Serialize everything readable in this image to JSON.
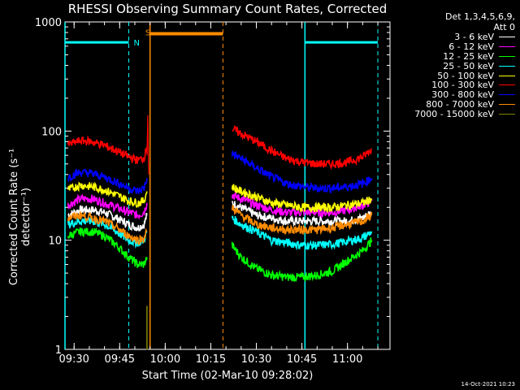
{
  "title": "RHESSI Observing Summary Count Rates, Corrected",
  "detector_header": [
    "Det 1,3,4,5,6,9,",
    "Att 0"
  ],
  "xlabel": "Start Time (02-Mar-10 09:28:02)",
  "ylabel": "Corrected Count Rate (s⁻¹ detector⁻¹)",
  "timestamp": "14-Oct-2021 10:23",
  "flags": {
    "n_label": "N",
    "s_label": "S"
  },
  "chart_data": {
    "type": "line",
    "title": "RHESSI Observing Summary Count Rates, Corrected",
    "xlabel": "Start Time (02-Mar-10 09:28:02)",
    "ylabel": "Corrected Count Rate (s⁻¹ detector⁻¹)",
    "y_scale": "log",
    "xlim": [
      "09:27",
      "11:14"
    ],
    "ylim": [
      1,
      1000
    ],
    "x_ticks": [
      "09:30",
      "09:45",
      "10:00",
      "10:15",
      "10:30",
      "10:45",
      "11:00"
    ],
    "y_ticks": [
      "1",
      "10",
      "100",
      "1000"
    ],
    "legend_position": "right",
    "series": [
      {
        "name": "3 - 6 keV",
        "color": "#ffffff",
        "x": [
          "09:28",
          "09:32",
          "09:36",
          "09:40",
          "09:44",
          "09:48",
          "09:51",
          "09:53",
          "09:54"
        ],
        "y": [
          17,
          19,
          19,
          18,
          16,
          14,
          13,
          14,
          17
        ],
        "x2": [
          "10:22",
          "10:25",
          "10:30",
          "10:35",
          "10:40",
          "10:45",
          "10:50",
          "10:55",
          "11:00",
          "11:05",
          "11:08"
        ],
        "y2": [
          22,
          20,
          17,
          16,
          15,
          15,
          15,
          15,
          15,
          16,
          18
        ]
      },
      {
        "name": "6 - 12 keV",
        "color": "#ff00ff",
        "x": [
          "09:28",
          "09:32",
          "09:36",
          "09:40",
          "09:44",
          "09:48",
          "09:51",
          "09:53",
          "09:54"
        ],
        "y": [
          21,
          24,
          24,
          22,
          20,
          18,
          17,
          18,
          22
        ],
        "x2": [
          "10:22",
          "10:25",
          "10:30",
          "10:35",
          "10:40",
          "10:45",
          "10:50",
          "10:55",
          "11:00",
          "11:05",
          "11:08"
        ],
        "y2": [
          26,
          24,
          21,
          19,
          18,
          18,
          18,
          18,
          19,
          21,
          23
        ]
      },
      {
        "name": "12 - 25 keV",
        "color": "#00ff00",
        "x": [
          "09:28",
          "09:32",
          "09:36",
          "09:40",
          "09:44",
          "09:48",
          "09:51",
          "09:53",
          "09:54"
        ],
        "y": [
          11,
          12,
          12,
          11,
          9,
          7,
          6,
          6,
          7
        ],
        "x2": [
          "10:22",
          "10:25",
          "10:30",
          "10:35",
          "10:40",
          "10:45",
          "10:50",
          "10:55",
          "11:00",
          "11:05",
          "11:08"
        ],
        "y2": [
          9,
          7,
          5.5,
          4.8,
          4.6,
          4.6,
          4.8,
          5.2,
          6.5,
          8,
          10
        ]
      },
      {
        "name": "25 - 50 keV",
        "color": "#00ffff",
        "x": [
          "09:28",
          "09:32",
          "09:36",
          "09:40",
          "09:44",
          "09:48",
          "09:51",
          "09:53",
          "09:54"
        ],
        "y": [
          14,
          15,
          15,
          14,
          12,
          10,
          9.5,
          10,
          12
        ],
        "x2": [
          "10:22",
          "10:25",
          "10:30",
          "10:35",
          "10:40",
          "10:45",
          "10:50",
          "10:55",
          "11:00",
          "11:05",
          "11:08"
        ],
        "y2": [
          16,
          14,
          12,
          10,
          9.5,
          9,
          9,
          9.2,
          9.8,
          10.5,
          12
        ]
      },
      {
        "name": "50 - 100 keV",
        "color": "#ffff00",
        "x": [
          "09:28",
          "09:32",
          "09:36",
          "09:40",
          "09:44",
          "09:48",
          "09:51",
          "09:53",
          "09:54"
        ],
        "y": [
          29,
          32,
          31,
          29,
          26,
          23,
          22,
          23,
          28
        ],
        "x2": [
          "10:22",
          "10:25",
          "10:30",
          "10:35",
          "10:40",
          "10:45",
          "10:50",
          "10:55",
          "11:00",
          "11:05",
          "11:08"
        ],
        "y2": [
          31,
          28,
          25,
          22,
          21,
          20,
          20,
          20,
          21,
          22,
          24
        ]
      },
      {
        "name": "100 - 300 keV",
        "color": "#ff0000",
        "x": [
          "09:28",
          "09:32",
          "09:36",
          "09:40",
          "09:44",
          "09:48",
          "09:51",
          "09:53",
          "09:54"
        ],
        "y": [
          75,
          82,
          80,
          74,
          66,
          58,
          54,
          57,
          72
        ],
        "x2": [
          "10:22",
          "10:25",
          "10:30",
          "10:35",
          "10:40",
          "10:45",
          "10:50",
          "10:55",
          "11:00",
          "11:05",
          "11:08"
        ],
        "y2": [
          105,
          95,
          80,
          66,
          56,
          52,
          50,
          50,
          52,
          58,
          68
        ]
      },
      {
        "name": "300 - 800 keV",
        "color": "#0000ff",
        "x": [
          "09:28",
          "09:32",
          "09:36",
          "09:40",
          "09:44",
          "09:48",
          "09:51",
          "09:53",
          "09:54"
        ],
        "y": [
          38,
          42,
          41,
          38,
          34,
          30,
          28,
          30,
          37
        ],
        "x2": [
          "10:22",
          "10:25",
          "10:30",
          "10:35",
          "10:40",
          "10:45",
          "10:50",
          "10:55",
          "11:00",
          "11:05",
          "11:08"
        ],
        "y2": [
          62,
          56,
          46,
          38,
          33,
          31,
          30,
          30,
          31,
          33,
          37
        ]
      },
      {
        "name": "800 - 7000 keV",
        "color": "#ff8c00",
        "x": [
          "09:28",
          "09:32",
          "09:36",
          "09:40",
          "09:44",
          "09:48",
          "09:51",
          "09:53",
          "09:54"
        ],
        "y": [
          16,
          17,
          16,
          15,
          13,
          11,
          10,
          10.5,
          12
        ],
        "x2": [
          "10:22",
          "10:25",
          "10:30",
          "10:35",
          "10:40",
          "10:45",
          "10:50",
          "10:55",
          "11:00",
          "11:05",
          "11:08"
        ],
        "y2": [
          20,
          17,
          14,
          13,
          12.5,
          12.5,
          12.5,
          13,
          14,
          15,
          17
        ]
      },
      {
        "name": "7000 - 15000 keV",
        "color": "#808000",
        "x": [
          "09:54",
          "09:54"
        ],
        "y": [
          1,
          2.5
        ],
        "x2": [],
        "y2": []
      }
    ],
    "flag_bars": [
      {
        "label": "N",
        "color": "#00ffff",
        "level": 650,
        "segments": [
          [
            "09:27",
            "09:48"
          ],
          [
            "10:46",
            "11:10"
          ]
        ]
      },
      {
        "label": "S",
        "color": "#ff8c00",
        "level": 780,
        "segments": [
          [
            "09:55",
            "10:19"
          ]
        ]
      }
    ],
    "solid_markers": [
      {
        "color": "#00ffff",
        "times": [
          "09:27",
          "10:46"
        ]
      },
      {
        "color": "#ff8c00",
        "times": [
          "09:55"
        ]
      }
    ],
    "dashed_markers": [
      {
        "color": "#00ffff",
        "times": [
          "09:48",
          "11:10"
        ]
      },
      {
        "color": "#ff8c00",
        "times": [
          "10:19"
        ]
      }
    ]
  }
}
